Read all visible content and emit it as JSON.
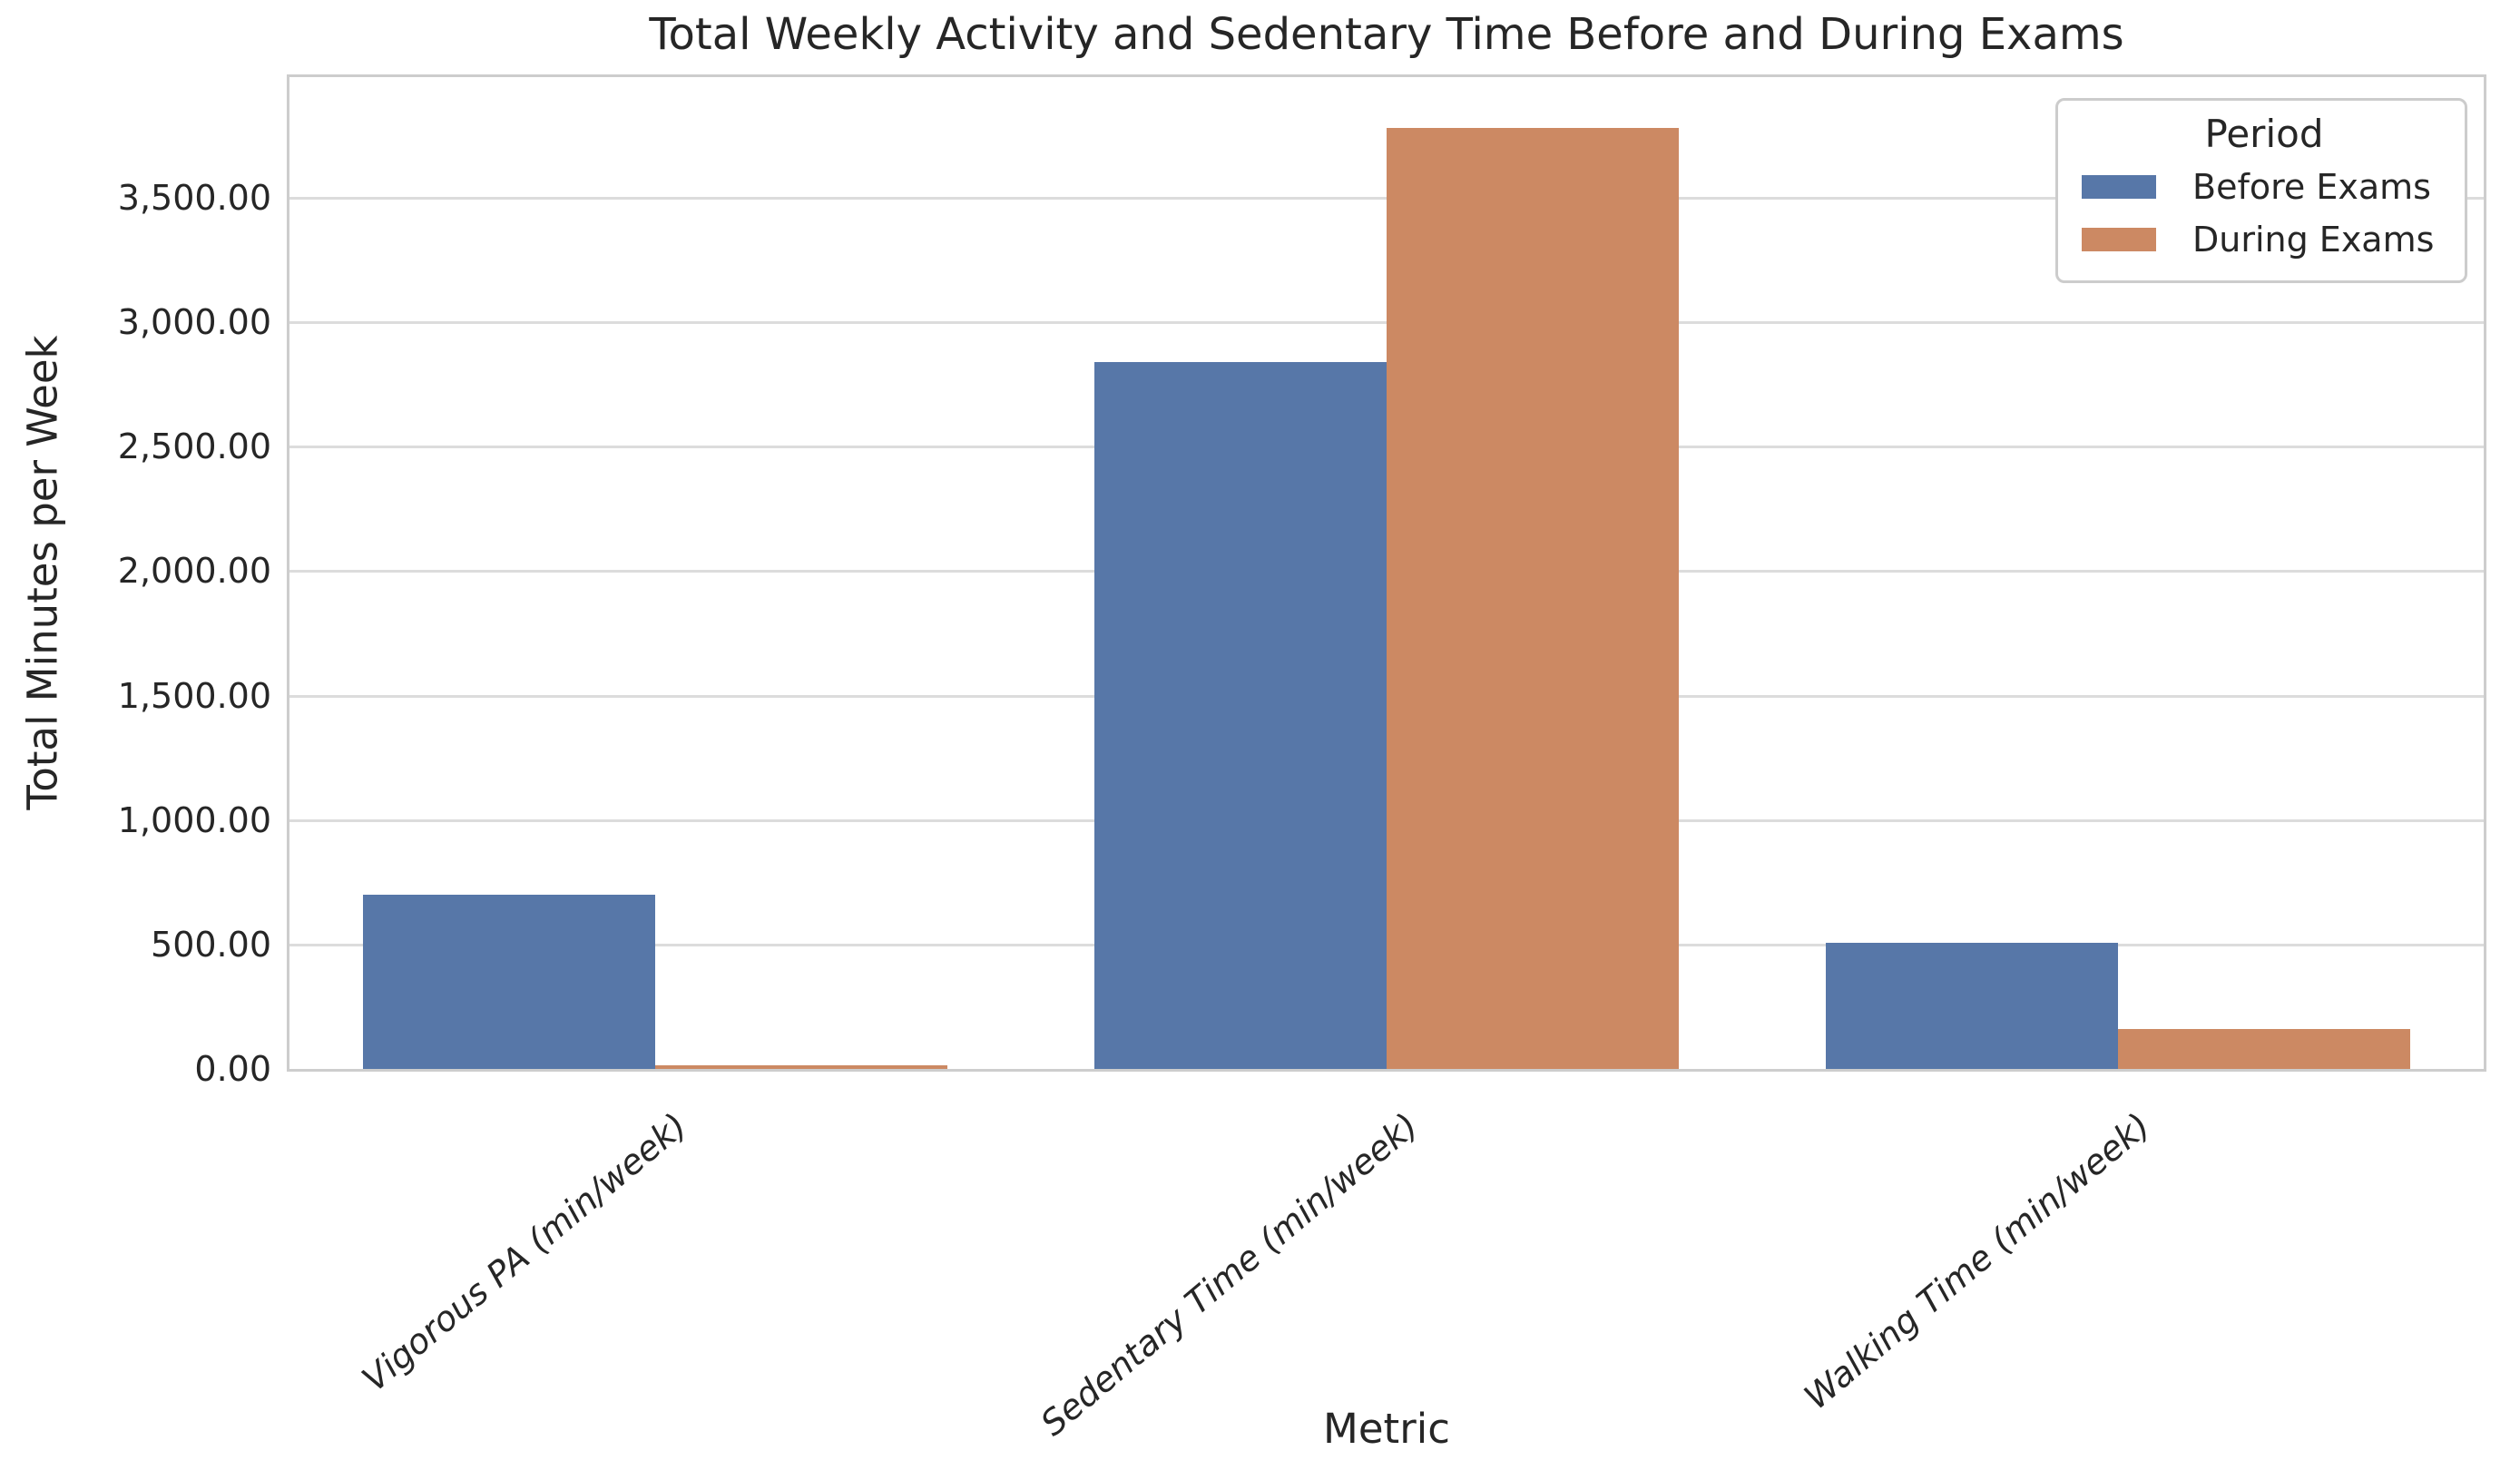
{
  "chart_data": {
    "type": "bar",
    "title": "Total Weekly Activity and Sedentary Time Before and During Exams",
    "xlabel": "Metric",
    "ylabel": "Total Minutes per Week",
    "categories": [
      "Vigorous PA (min/week)",
      "Sedentary Time (min/week)",
      "Walking Time (min/week)"
    ],
    "series": [
      {
        "name": "Before Exams",
        "color": "#5777A8",
        "values": [
          700,
          2840,
          505
        ]
      },
      {
        "name": "During Exams",
        "color": "#CC8963",
        "values": [
          15,
          3780,
          160
        ]
      }
    ],
    "legend": {
      "title": "Period",
      "position": "upper right"
    },
    "ylim": [
      0,
      3985
    ],
    "yticks": {
      "values": [
        0,
        500,
        1000,
        1500,
        2000,
        2500,
        3000,
        3500
      ],
      "labels": [
        "0.00",
        "500.00",
        "1,000.00",
        "1,500.00",
        "2,000.00",
        "2,500.00",
        "3,000.00",
        "3,500.00"
      ]
    },
    "grid": true,
    "bar_group_width_fraction": 0.8,
    "xtick_rotation_deg": 40,
    "xtick_style": "italic",
    "colors": {
      "grid": "#DCDCDC",
      "spine": "#CDCDCD",
      "text": "#262626",
      "background": "#FFFFFF"
    }
  }
}
